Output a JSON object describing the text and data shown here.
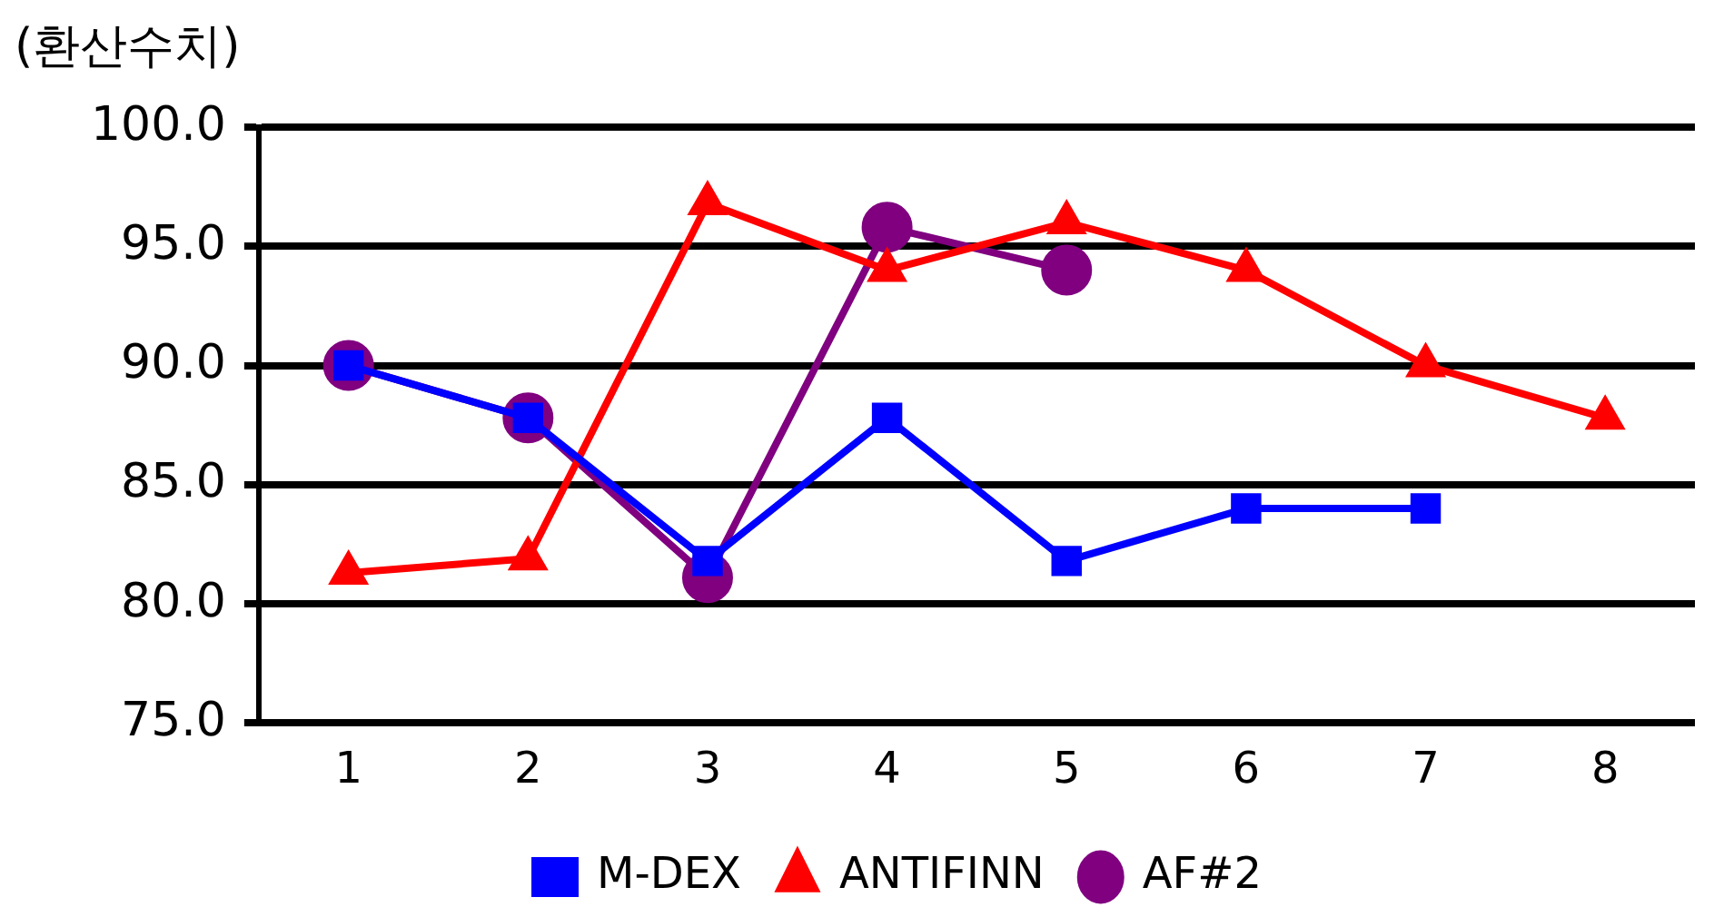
{
  "chart_data": {
    "type": "line",
    "ylabel": "(환산수치)",
    "categories": [
      "1",
      "2",
      "3",
      "4",
      "5",
      "6",
      "7",
      "8"
    ],
    "series": [
      {
        "name": "M-DEX",
        "color": "#0000ff",
        "marker": "square",
        "values": [
          90,
          87.8,
          81.8,
          87.8,
          81.8,
          84,
          84,
          null
        ]
      },
      {
        "name": "ANTIFINN",
        "color": "#ff0000",
        "marker": "triangle",
        "values": [
          81.3,
          81.9,
          96.8,
          94,
          96,
          94,
          90,
          87.8
        ]
      },
      {
        "name": "AF#2",
        "color": "#800080",
        "marker": "circle",
        "values": [
          90,
          87.8,
          81.1,
          95.8,
          94,
          null,
          null,
          null
        ]
      }
    ],
    "ylim": [
      75,
      100
    ],
    "yticks": [
      {
        "value": 75,
        "label": "75.0"
      },
      {
        "value": 80,
        "label": "80.0"
      },
      {
        "value": 85,
        "label": "85.0"
      },
      {
        "value": 90,
        "label": "90.0"
      },
      {
        "value": 95,
        "label": "95.0"
      },
      {
        "value": 100,
        "label": "100.0"
      }
    ],
    "grid": "y",
    "legend": "bottom",
    "line_style": "solid"
  }
}
